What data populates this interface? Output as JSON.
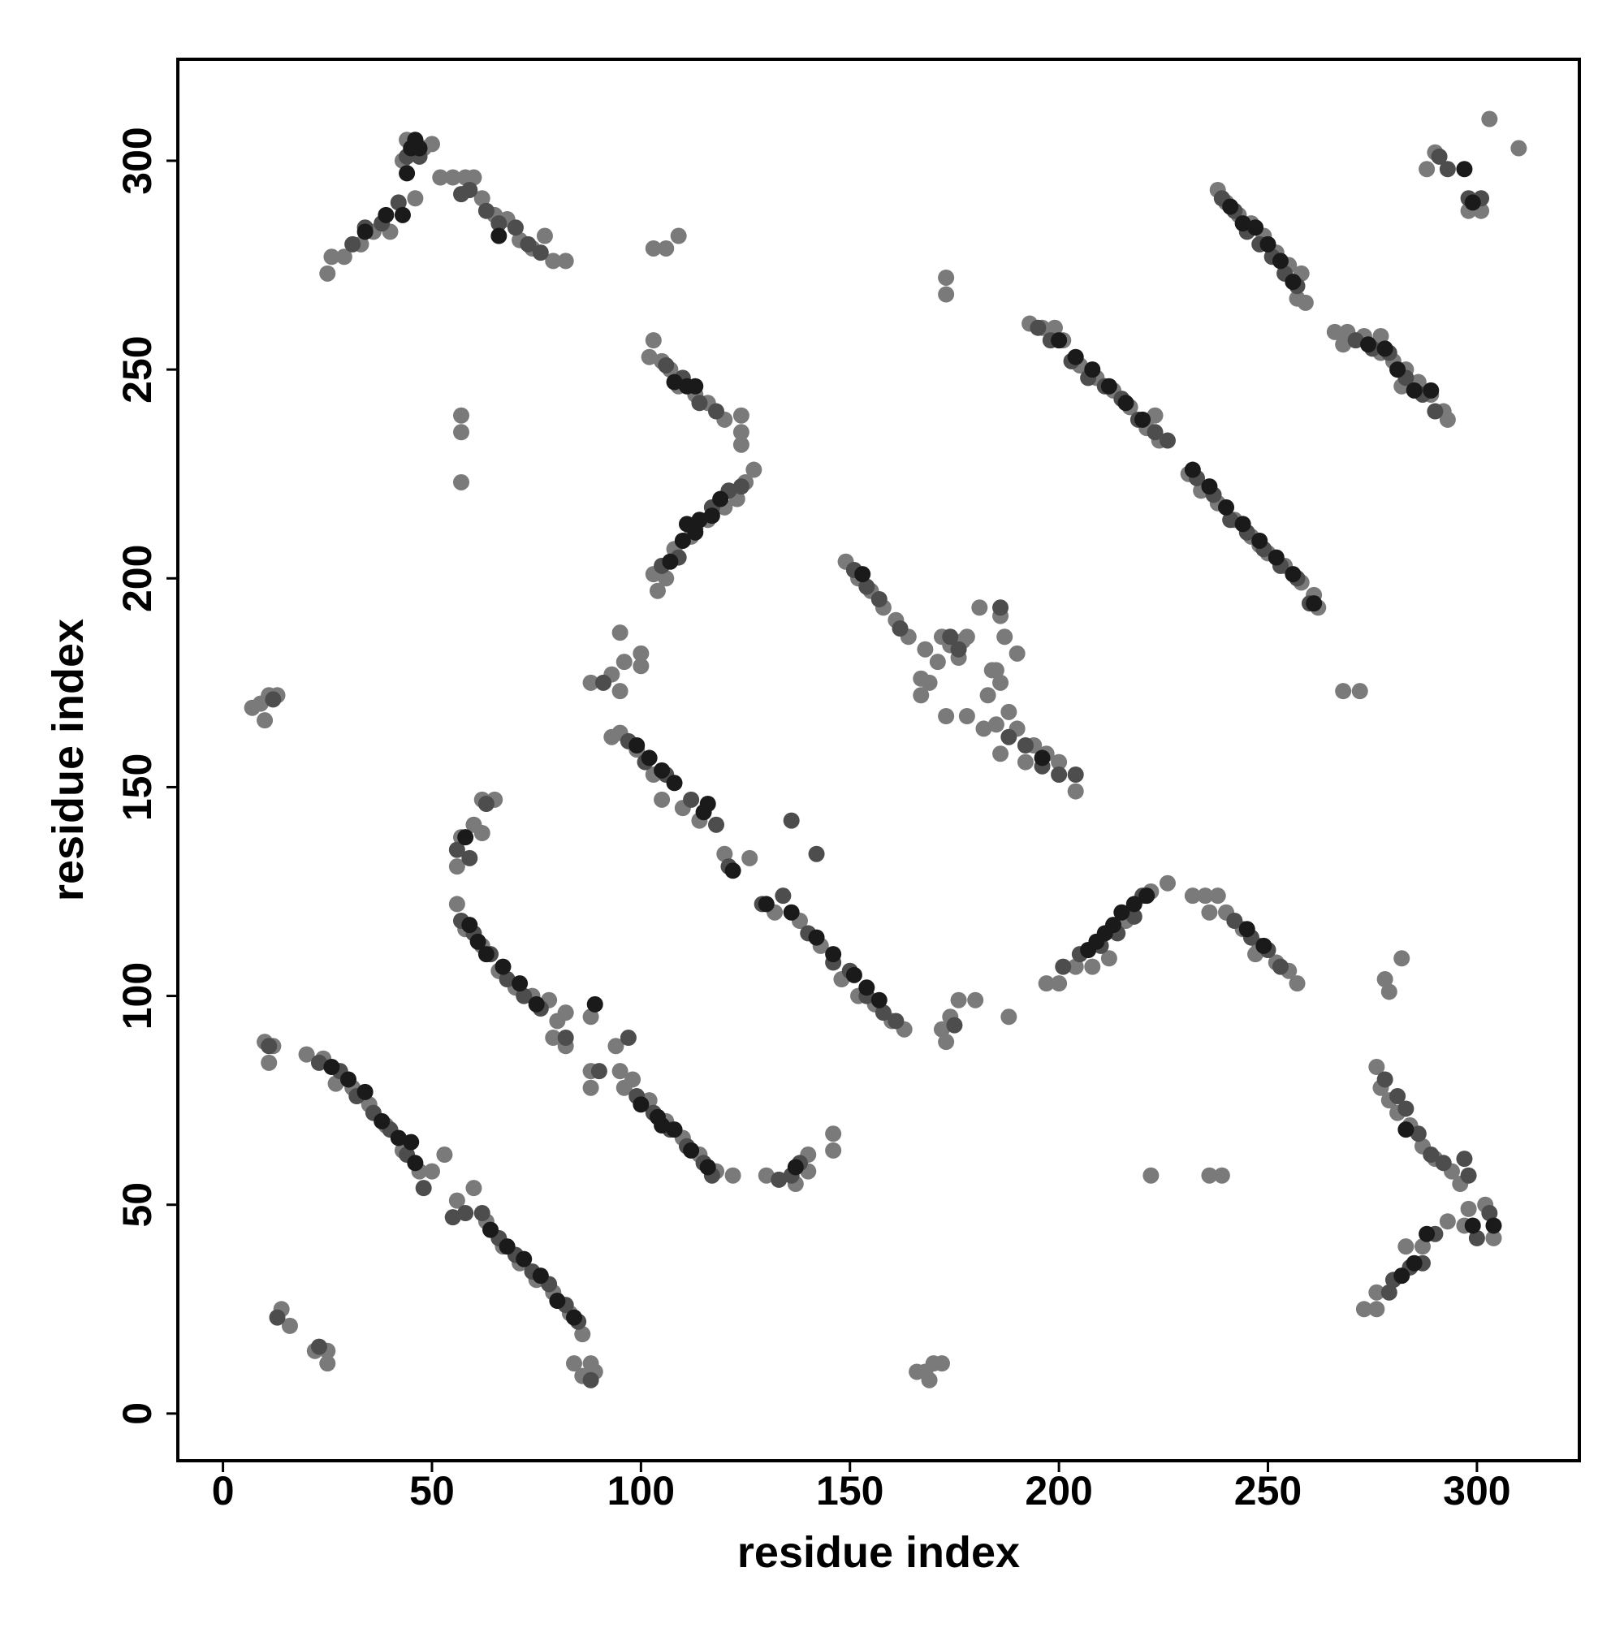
{
  "chart_data": {
    "type": "scatter",
    "xlabel": "residue index",
    "ylabel": "residue index",
    "xlim": [
      -10.8,
      324.5
    ],
    "ylim": [
      -11.3,
      324.3
    ],
    "xticks": [
      0,
      50,
      100,
      150,
      200,
      250,
      300
    ],
    "yticks": [
      0,
      50,
      100,
      150,
      200,
      250,
      300
    ],
    "series": [
      {
        "color": "#7a7a7a",
        "x": [
          20,
          24,
          27,
          31,
          35,
          39,
          43,
          47,
          50,
          53,
          56,
          60,
          63,
          67,
          71,
          75,
          79,
          83,
          86,
          12,
          11,
          10,
          84,
          88,
          89,
          86,
          14,
          16,
          22,
          25,
          25,
          56,
          58,
          62,
          66,
          70,
          74,
          78,
          80,
          82,
          79,
          82,
          88,
          56,
          57,
          60,
          62,
          62,
          65,
          95,
          96,
          98,
          102,
          106,
          110,
          114,
          118,
          122,
          88,
          88,
          94,
          93,
          95,
          99,
          103,
          105,
          110,
          114,
          120,
          126,
          132,
          138,
          143,
          148,
          152,
          156,
          160,
          163,
          95,
          88,
          93,
          96,
          100,
          95,
          100,
          149,
          152,
          155,
          158,
          161,
          164,
          168,
          172,
          174,
          176,
          178,
          181,
          186,
          184,
          186,
          188,
          190,
          194,
          197,
          200,
          204,
          185,
          187,
          190,
          185,
          183,
          178,
          173,
          167,
          167,
          182,
          186,
          192,
          193,
          196,
          199,
          201,
          205,
          209,
          213,
          217,
          221,
          224,
          231,
          234,
          238,
          242,
          246,
          250,
          254,
          258,
          261,
          262,
          248,
          223,
          238,
          240,
          243,
          246,
          249,
          252,
          255,
          258,
          259,
          257,
          266,
          269,
          273,
          277,
          280,
          283,
          286,
          289,
          292,
          293,
          268,
          277,
          282,
          103,
          104,
          106,
          108,
          112,
          116,
          120,
          123,
          125,
          127,
          197,
          200,
          204,
          208,
          212,
          216,
          222,
          226,
          232,
          235,
          238,
          240,
          236,
          244,
          248,
          252,
          255,
          257,
          247,
          273,
          276,
          276,
          283,
          287,
          276,
          277,
          279,
          281,
          284,
          287,
          290,
          294,
          296,
          298,
          302,
          304,
          297,
          278,
          279,
          282,
          293,
          25,
          26,
          29,
          33,
          36,
          40,
          43,
          44,
          50,
          52,
          55,
          58,
          60,
          62,
          65,
          68,
          71,
          74,
          77,
          79,
          82,
          46,
          48,
          102,
          103,
          105,
          107,
          109,
          113,
          116,
          120,
          124,
          124,
          124,
          7,
          9,
          11,
          13,
          10,
          57,
          57,
          57,
          103,
          106,
          109,
          173,
          173,
          170,
          169,
          168,
          172,
          166,
          130,
          137,
          140,
          146,
          146,
          140,
          172,
          174,
          176,
          180,
          188,
          173,
          268,
          272,
          222,
          236,
          239,
          290,
          288,
          298,
          301,
          303,
          310,
          171,
          169,
          177
        ],
        "y": [
          86,
          85,
          79,
          78,
          74,
          69,
          63,
          58,
          58,
          62,
          51,
          54,
          46,
          40,
          36,
          32,
          29,
          24,
          19,
          88,
          84,
          89,
          12,
          12,
          10,
          9,
          25,
          21,
          15,
          12,
          15,
          122,
          116,
          112,
          106,
          102,
          100,
          99,
          94,
          96,
          90,
          88,
          95,
          131,
          138,
          141,
          139,
          147,
          147,
          82,
          78,
          80,
          75,
          70,
          66,
          62,
          58,
          57,
          82,
          78,
          88,
          162,
          163,
          159,
          153,
          147,
          145,
          142,
          134,
          133,
          120,
          118,
          112,
          104,
          100,
          98,
          94,
          92,
          173,
          175,
          177,
          180,
          179,
          187,
          182,
          204,
          200,
          197,
          193,
          190,
          186,
          183,
          186,
          184,
          181,
          186,
          193,
          191,
          178,
          175,
          168,
          164,
          160,
          158,
          156,
          149,
          165,
          186,
          182,
          178,
          172,
          167,
          167,
          176,
          172,
          164,
          158,
          156,
          261,
          260,
          260,
          257,
          251,
          248,
          245,
          241,
          236,
          233,
          225,
          221,
          218,
          214,
          210,
          206,
          203,
          199,
          196,
          193,
          208,
          239,
          293,
          290,
          287,
          285,
          282,
          278,
          275,
          273,
          266,
          267,
          259,
          259,
          258,
          258,
          252,
          250,
          247,
          244,
          240,
          238,
          256,
          254,
          246,
          201,
          197,
          200,
          207,
          210,
          214,
          217,
          219,
          223,
          226,
          103,
          103,
          107,
          107,
          109,
          118,
          125,
          127,
          124,
          124,
          124,
          120,
          120,
          116,
          112,
          108,
          106,
          103,
          110,
          25,
          25,
          29,
          40,
          40,
          83,
          78,
          75,
          72,
          69,
          64,
          61,
          58,
          55,
          49,
          50,
          42,
          45,
          104,
          101,
          109,
          46,
          273,
          277,
          277,
          280,
          283,
          283,
          300,
          305,
          304,
          296,
          296,
          296,
          296,
          291,
          287,
          286,
          281,
          279,
          282,
          276,
          276,
          291,
          303,
          253,
          257,
          252,
          250,
          246,
          244,
          242,
          238,
          239,
          235,
          232,
          169,
          170,
          172,
          172,
          166,
          239,
          235,
          223,
          279,
          279,
          282,
          272,
          268,
          12,
          8,
          10,
          12,
          10,
          57,
          55,
          58,
          63,
          67,
          62,
          92,
          95,
          99,
          99,
          95,
          89,
          173,
          173,
          57,
          57,
          57,
          302,
          298,
          288,
          288,
          310,
          303,
          180,
          175,
          185
        ]
      },
      {
        "color": "#4d4d4d",
        "x": [
          23,
          28,
          32,
          36,
          40,
          44,
          48,
          55,
          58,
          62,
          66,
          70,
          74,
          78,
          82,
          85,
          13,
          23,
          88,
          11,
          57,
          60,
          64,
          68,
          72,
          76,
          82,
          56,
          59,
          63,
          99,
          103,
          107,
          111,
          115,
          117,
          90,
          97,
          97,
          101,
          106,
          112,
          118,
          121,
          129,
          134,
          140,
          146,
          150,
          154,
          158,
          161,
          136,
          142,
          91,
          151,
          154,
          157,
          162,
          188,
          192,
          196,
          200,
          204,
          176,
          186,
          174,
          195,
          198,
          203,
          207,
          211,
          215,
          219,
          223,
          233,
          237,
          241,
          245,
          249,
          253,
          257,
          260,
          226,
          239,
          242,
          245,
          248,
          251,
          254,
          257,
          271,
          275,
          279,
          283,
          287,
          290,
          105,
          109,
          113,
          117,
          121,
          124,
          201,
          205,
          210,
          214,
          218,
          220,
          242,
          246,
          250,
          253,
          279,
          280,
          284,
          287,
          290,
          278,
          281,
          283,
          286,
          289,
          292,
          297,
          298,
          303,
          300,
          31,
          34,
          38,
          42,
          44,
          47,
          57,
          59,
          63,
          66,
          70,
          73,
          76,
          106,
          110,
          114,
          118,
          12,
          133,
          136,
          138,
          175,
          293,
          291,
          298,
          301
        ],
        "y": [
          84,
          82,
          76,
          72,
          68,
          62,
          54,
          47,
          48,
          48,
          42,
          38,
          34,
          31,
          26,
          22,
          23,
          16,
          8,
          88,
          118,
          115,
          110,
          104,
          100,
          97,
          90,
          135,
          133,
          146,
          76,
          72,
          68,
          64,
          60,
          57,
          82,
          90,
          161,
          156,
          153,
          147,
          141,
          131,
          122,
          124,
          115,
          108,
          106,
          100,
          96,
          94,
          142,
          134,
          175,
          202,
          198,
          195,
          188,
          162,
          160,
          155,
          153,
          153,
          183,
          193,
          186,
          260,
          257,
          252,
          248,
          246,
          243,
          238,
          235,
          224,
          220,
          214,
          211,
          207,
          203,
          200,
          194,
          233,
          291,
          288,
          283,
          280,
          277,
          273,
          270,
          257,
          255,
          254,
          248,
          244,
          240,
          203,
          205,
          212,
          217,
          221,
          222,
          107,
          110,
          112,
          115,
          119,
          124,
          118,
          114,
          111,
          107,
          29,
          32,
          35,
          36,
          43,
          80,
          76,
          73,
          67,
          62,
          60,
          61,
          57,
          48,
          42,
          280,
          284,
          285,
          290,
          301,
          301,
          292,
          293,
          288,
          285,
          284,
          280,
          278,
          251,
          248,
          242,
          240,
          171,
          56,
          57,
          60,
          93,
          298,
          301,
          291,
          291
        ]
      },
      {
        "color": "#1a1a1a",
        "x": [
          26,
          30,
          34,
          38,
          42,
          46,
          64,
          68,
          72,
          76,
          80,
          84,
          45,
          59,
          61,
          63,
          67,
          71,
          75,
          58,
          89,
          100,
          104,
          108,
          112,
          116,
          105,
          99,
          102,
          105,
          108,
          116,
          122,
          130,
          136,
          142,
          146,
          151,
          154,
          157,
          115,
          153,
          196,
          200,
          204,
          208,
          212,
          216,
          220,
          232,
          236,
          240,
          244,
          248,
          252,
          256,
          261,
          241,
          244,
          247,
          250,
          253,
          256,
          274,
          278,
          281,
          285,
          289,
          107,
          110,
          113,
          114,
          117,
          119,
          111,
          207,
          209,
          211,
          213,
          215,
          218,
          221,
          245,
          249,
          282,
          285,
          288,
          299,
          304,
          283,
          39,
          43,
          45,
          46,
          47,
          34,
          44,
          66,
          108,
          111,
          113,
          297,
          137,
          299
        ],
        "y": [
          83,
          80,
          77,
          70,
          66,
          60,
          44,
          40,
          37,
          33,
          27,
          23,
          65,
          117,
          113,
          110,
          107,
          103,
          98,
          138,
          98,
          74,
          71,
          68,
          63,
          59,
          69,
          160,
          157,
          154,
          151,
          146,
          130,
          122,
          120,
          114,
          110,
          105,
          102,
          99,
          144,
          201,
          157,
          257,
          253,
          250,
          246,
          242,
          238,
          226,
          222,
          217,
          213,
          209,
          205,
          201,
          194,
          289,
          285,
          284,
          280,
          276,
          271,
          256,
          255,
          250,
          245,
          245,
          204,
          209,
          211,
          214,
          215,
          219,
          213,
          111,
          113,
          115,
          117,
          120,
          122,
          124,
          116,
          112,
          33,
          36,
          43,
          45,
          45,
          68,
          287,
          287,
          303,
          305,
          303,
          283,
          297,
          282,
          247,
          246,
          246,
          298,
          59,
          290
        ]
      }
    ]
  }
}
